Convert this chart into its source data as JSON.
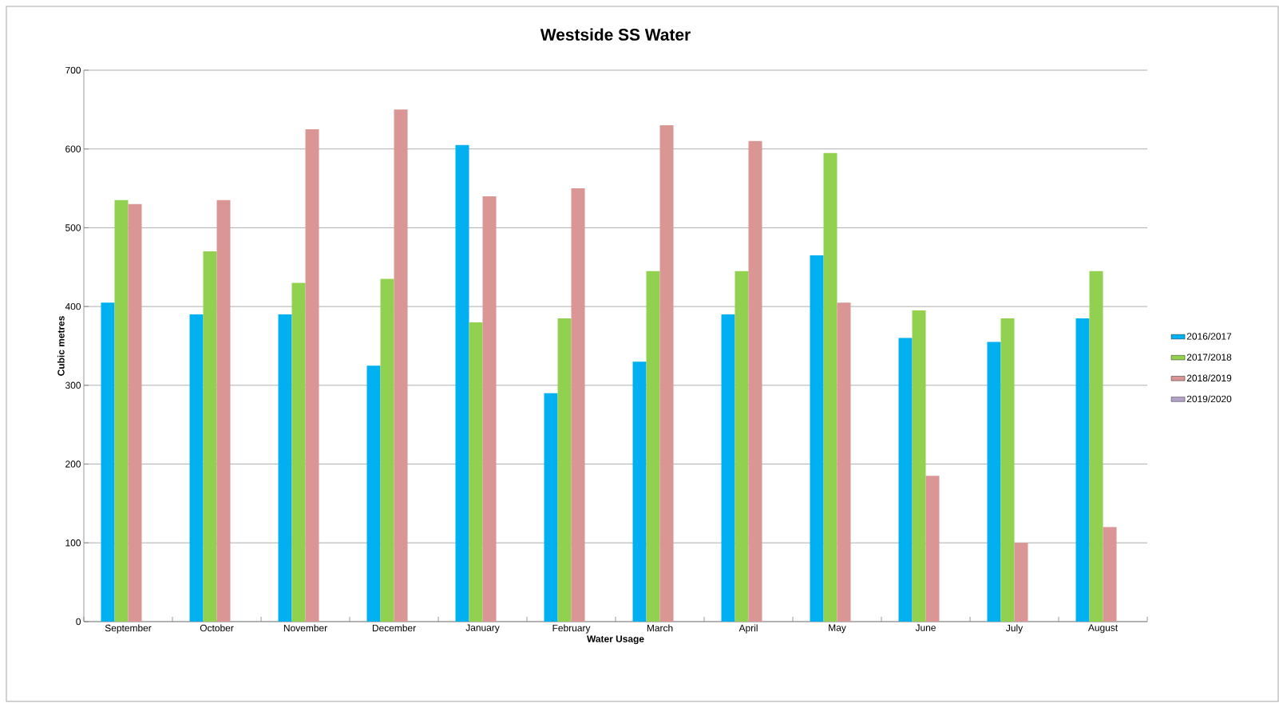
{
  "chart_data": {
    "type": "bar",
    "title": "Westside SS Water",
    "xlabel": "Water Usage",
    "ylabel": "Cubic metres",
    "categories": [
      "September",
      "October",
      "November",
      "December",
      "January",
      "February",
      "March",
      "April",
      "May",
      "June",
      "July",
      "August"
    ],
    "series": [
      {
        "name": "2016/2017",
        "color": "#00b0f0",
        "values": [
          405,
          390,
          390,
          325,
          605,
          290,
          330,
          390,
          465,
          360,
          355,
          385
        ]
      },
      {
        "name": "2017/2018",
        "color": "#92d050",
        "values": [
          535,
          470,
          430,
          435,
          380,
          385,
          445,
          445,
          595,
          395,
          385,
          445
        ]
      },
      {
        "name": "2018/2019",
        "color": "#d99694",
        "values": [
          530,
          535,
          625,
          650,
          540,
          550,
          630,
          610,
          405,
          185,
          100,
          120
        ]
      },
      {
        "name": "2019/2020",
        "color": "#b3a2c7",
        "values": [
          null,
          null,
          null,
          null,
          null,
          null,
          null,
          null,
          null,
          null,
          null,
          null
        ]
      }
    ],
    "ylim": [
      0,
      700
    ],
    "yticks": [
      0,
      100,
      200,
      300,
      400,
      500,
      600,
      700
    ],
    "grid": "y",
    "legend": "right"
  }
}
